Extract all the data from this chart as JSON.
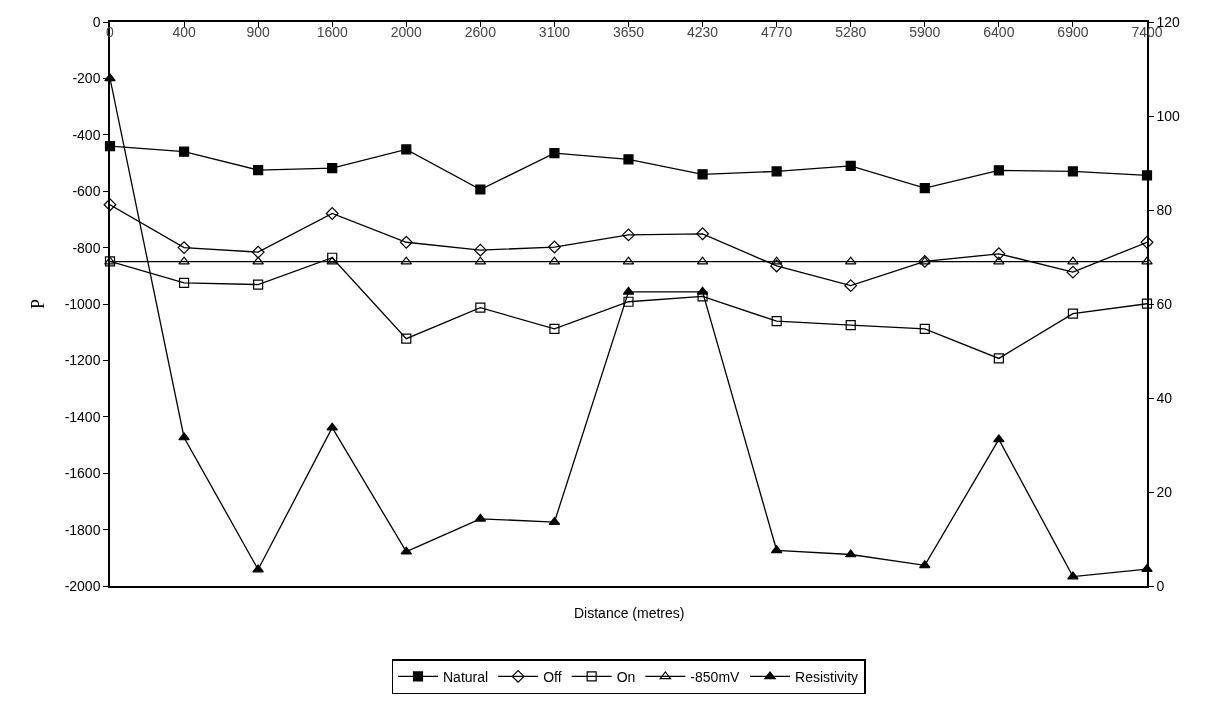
{
  "chart_data": {
    "type": "line",
    "xlabel": "Distance (metres)",
    "ylabel": "P",
    "categories": [
      "0",
      "400",
      "900",
      "1600",
      "2000",
      "2600",
      "3100",
      "3650",
      "4230",
      "4770",
      "5280",
      "5900",
      "6400",
      "6900",
      "7400"
    ],
    "ylim": [
      -2000,
      0
    ],
    "yticks": [
      0,
      -200,
      -400,
      -600,
      -800,
      -1000,
      -1200,
      -1400,
      -1600,
      -1800,
      -2000
    ],
    "y2lim": [
      0,
      120
    ],
    "y2ticks": [
      0,
      20,
      40,
      60,
      80,
      100,
      120
    ],
    "legend": "bottom",
    "line_style": "solid",
    "series": [
      {
        "name": "Natural",
        "color": "#000000",
        "marker": "square",
        "values": [
          -440,
          -460,
          -525,
          -518,
          -452,
          -594,
          -465,
          -487,
          -540,
          -530,
          -510,
          -589,
          -526,
          -530,
          -544
        ]
      },
      {
        "name": "Off",
        "color": "#000000",
        "marker": "diamond-open",
        "values": [
          -648,
          -800,
          -816,
          -679,
          -781,
          -809,
          -798,
          -755,
          -751,
          -865,
          -935,
          -849,
          -822,
          -887,
          -781
        ]
      },
      {
        "name": "On",
        "color": "#000000",
        "marker": "square-open",
        "values": [
          -849,
          -925,
          -931,
          -836,
          -1123,
          -1013,
          -1088,
          -992,
          -973,
          -1061,
          -1075,
          -1088,
          -1193,
          -1034,
          -999
        ]
      },
      {
        "name": "-850mV",
        "color": "#000000",
        "marker": "triangle-open",
        "values": [
          -850,
          -850,
          -850,
          -850,
          -850,
          -850,
          -850,
          -850,
          -850,
          -850,
          -850,
          -850,
          -850,
          -850,
          -850
        ]
      },
      {
        "name": "Resistivity",
        "color": "#000000",
        "marker": "triangle",
        "axis": "y2",
        "values": [
          108,
          31.6,
          3.5,
          33.7,
          7.3,
          14.3,
          13.6,
          62.6,
          62.6,
          7.6,
          6.7,
          4.4,
          31.2,
          2.0,
          3.6
        ]
      }
    ]
  }
}
